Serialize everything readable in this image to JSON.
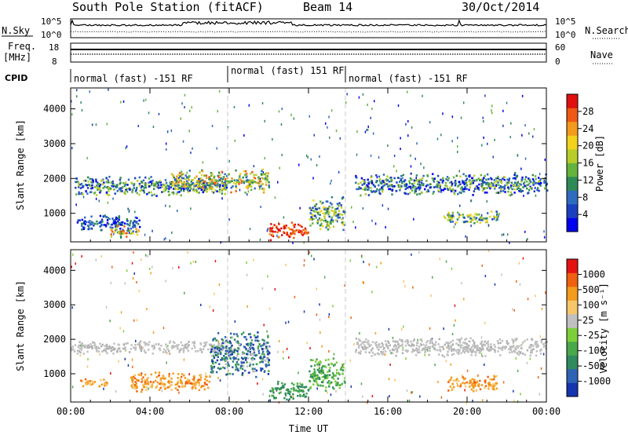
{
  "header": {
    "title": "South Pole Station (fitACF)",
    "beam": "Beam 14",
    "date": "30/Oct/2014"
  },
  "nsky_panel": {
    "left_label": "N.Sky",
    "right_label": "N.Search",
    "left_ticks": [
      "10^5",
      "10^0"
    ],
    "right_ticks": [
      "10^5",
      "10^0"
    ]
  },
  "freq_panel": {
    "left_label_1": "Freq.",
    "left_label_2": "[MHz]",
    "right_label": "Nave",
    "left_ticks": [
      "18",
      "8"
    ],
    "right_ticks": [
      "60",
      "0"
    ]
  },
  "cpid": {
    "label": "CPID",
    "segments": [
      {
        "start_hour": 0,
        "end_hour": 8.0,
        "text": "normal (fast) -151 RF"
      },
      {
        "start_hour": 8.0,
        "end_hour": 14.0,
        "text": "normal (fast) 151 RF"
      },
      {
        "start_hour": 14.0,
        "end_hour": 24,
        "text": "normal (fast) -151 RF"
      }
    ]
  },
  "chart_data": [
    {
      "type": "heatmap",
      "name": "power",
      "ylabel": "Slant Range [km]",
      "ylim": [
        180,
        4600
      ],
      "yticks": [
        "1000",
        "2000",
        "3000",
        "4000"
      ],
      "xlim_hours": [
        0,
        24
      ],
      "colorbar": {
        "label": "Power [dB]",
        "ticks": [
          "4",
          "8",
          "12",
          "16",
          "20",
          "24",
          "28"
        ],
        "colors": [
          "#0000ee",
          "#1a3fbf",
          "#2f6bbf",
          "#2e8b57",
          "#64b33c",
          "#b8cd2a",
          "#f2d21c",
          "#f39b1c",
          "#ee5a14",
          "#e01010"
        ]
      },
      "structures": [
        {
          "from_hour": 0.2,
          "to_hour": 7.9,
          "range_km": [
            1500,
            2100
          ],
          "level": "low-mid"
        },
        {
          "from_hour": 5.0,
          "to_hour": 10.0,
          "range_km": [
            1600,
            2300
          ],
          "level": "high"
        },
        {
          "from_hour": 0.3,
          "to_hour": 3.5,
          "range_km": [
            500,
            1000
          ],
          "level": "low"
        },
        {
          "from_hour": 2.0,
          "to_hour": 3.4,
          "range_km": [
            300,
            700
          ],
          "level": "high"
        },
        {
          "from_hour": 10.0,
          "to_hour": 12.0,
          "range_km": [
            250,
            800
          ],
          "level": "peak"
        },
        {
          "from_hour": 12.0,
          "to_hour": 13.8,
          "range_km": [
            500,
            1500
          ],
          "level": "mid"
        },
        {
          "from_hour": 14.3,
          "to_hour": 24.0,
          "range_km": [
            1500,
            2200
          ],
          "level": "low-mid"
        },
        {
          "from_hour": 18.8,
          "to_hour": 21.5,
          "range_km": [
            700,
            1100
          ],
          "level": "mid"
        }
      ]
    },
    {
      "type": "heatmap",
      "name": "velocity",
      "ylabel": "Slant Range [km]",
      "ylim": [
        180,
        4600
      ],
      "yticks": [
        "1000",
        "2000",
        "3000",
        "4000"
      ],
      "xlim_hours": [
        0,
        24
      ],
      "xticks": [
        "00:00",
        "04:00",
        "08:00",
        "12:00",
        "16:00",
        "20:00",
        "00:00"
      ],
      "xlabel": "Time UT",
      "colorbar": {
        "label": "Velocity [m s⁻¹]",
        "ticks": [
          "1000",
          "500",
          "100",
          "25",
          "-25",
          "-100",
          "-500",
          "-1000"
        ],
        "colors": [
          "#1535b0",
          "#2e62b4",
          "#2f8a5e",
          "#49a84a",
          "#7dcf3a",
          "#c0c0c0",
          "#f6c66a",
          "#f39b1c",
          "#f06010",
          "#e41212"
        ]
      },
      "structures": [
        {
          "from_hour": 0.0,
          "to_hour": 8.0,
          "range_km": [
            1600,
            2000
          ],
          "level": "ground"
        },
        {
          "from_hour": 14.3,
          "to_hour": 24.0,
          "range_km": [
            1500,
            2100
          ],
          "level": "ground"
        },
        {
          "from_hour": 0.4,
          "to_hour": 1.8,
          "range_km": [
            600,
            900
          ],
          "level": "neg"
        },
        {
          "from_hour": 3.0,
          "to_hour": 7.0,
          "range_km": [
            500,
            1100
          ],
          "level": "neg"
        },
        {
          "from_hour": 7.0,
          "to_hour": 10.0,
          "range_km": [
            900,
            2300
          ],
          "level": "pos"
        },
        {
          "from_hour": 10.0,
          "to_hour": 12.0,
          "range_km": [
            250,
            800
          ],
          "level": "pos-mid"
        },
        {
          "from_hour": 12.0,
          "to_hour": 13.8,
          "range_km": [
            500,
            1500
          ],
          "level": "pos-low"
        },
        {
          "from_hour": 19.0,
          "to_hour": 21.5,
          "range_km": [
            500,
            1000
          ],
          "level": "neg"
        }
      ]
    }
  ]
}
